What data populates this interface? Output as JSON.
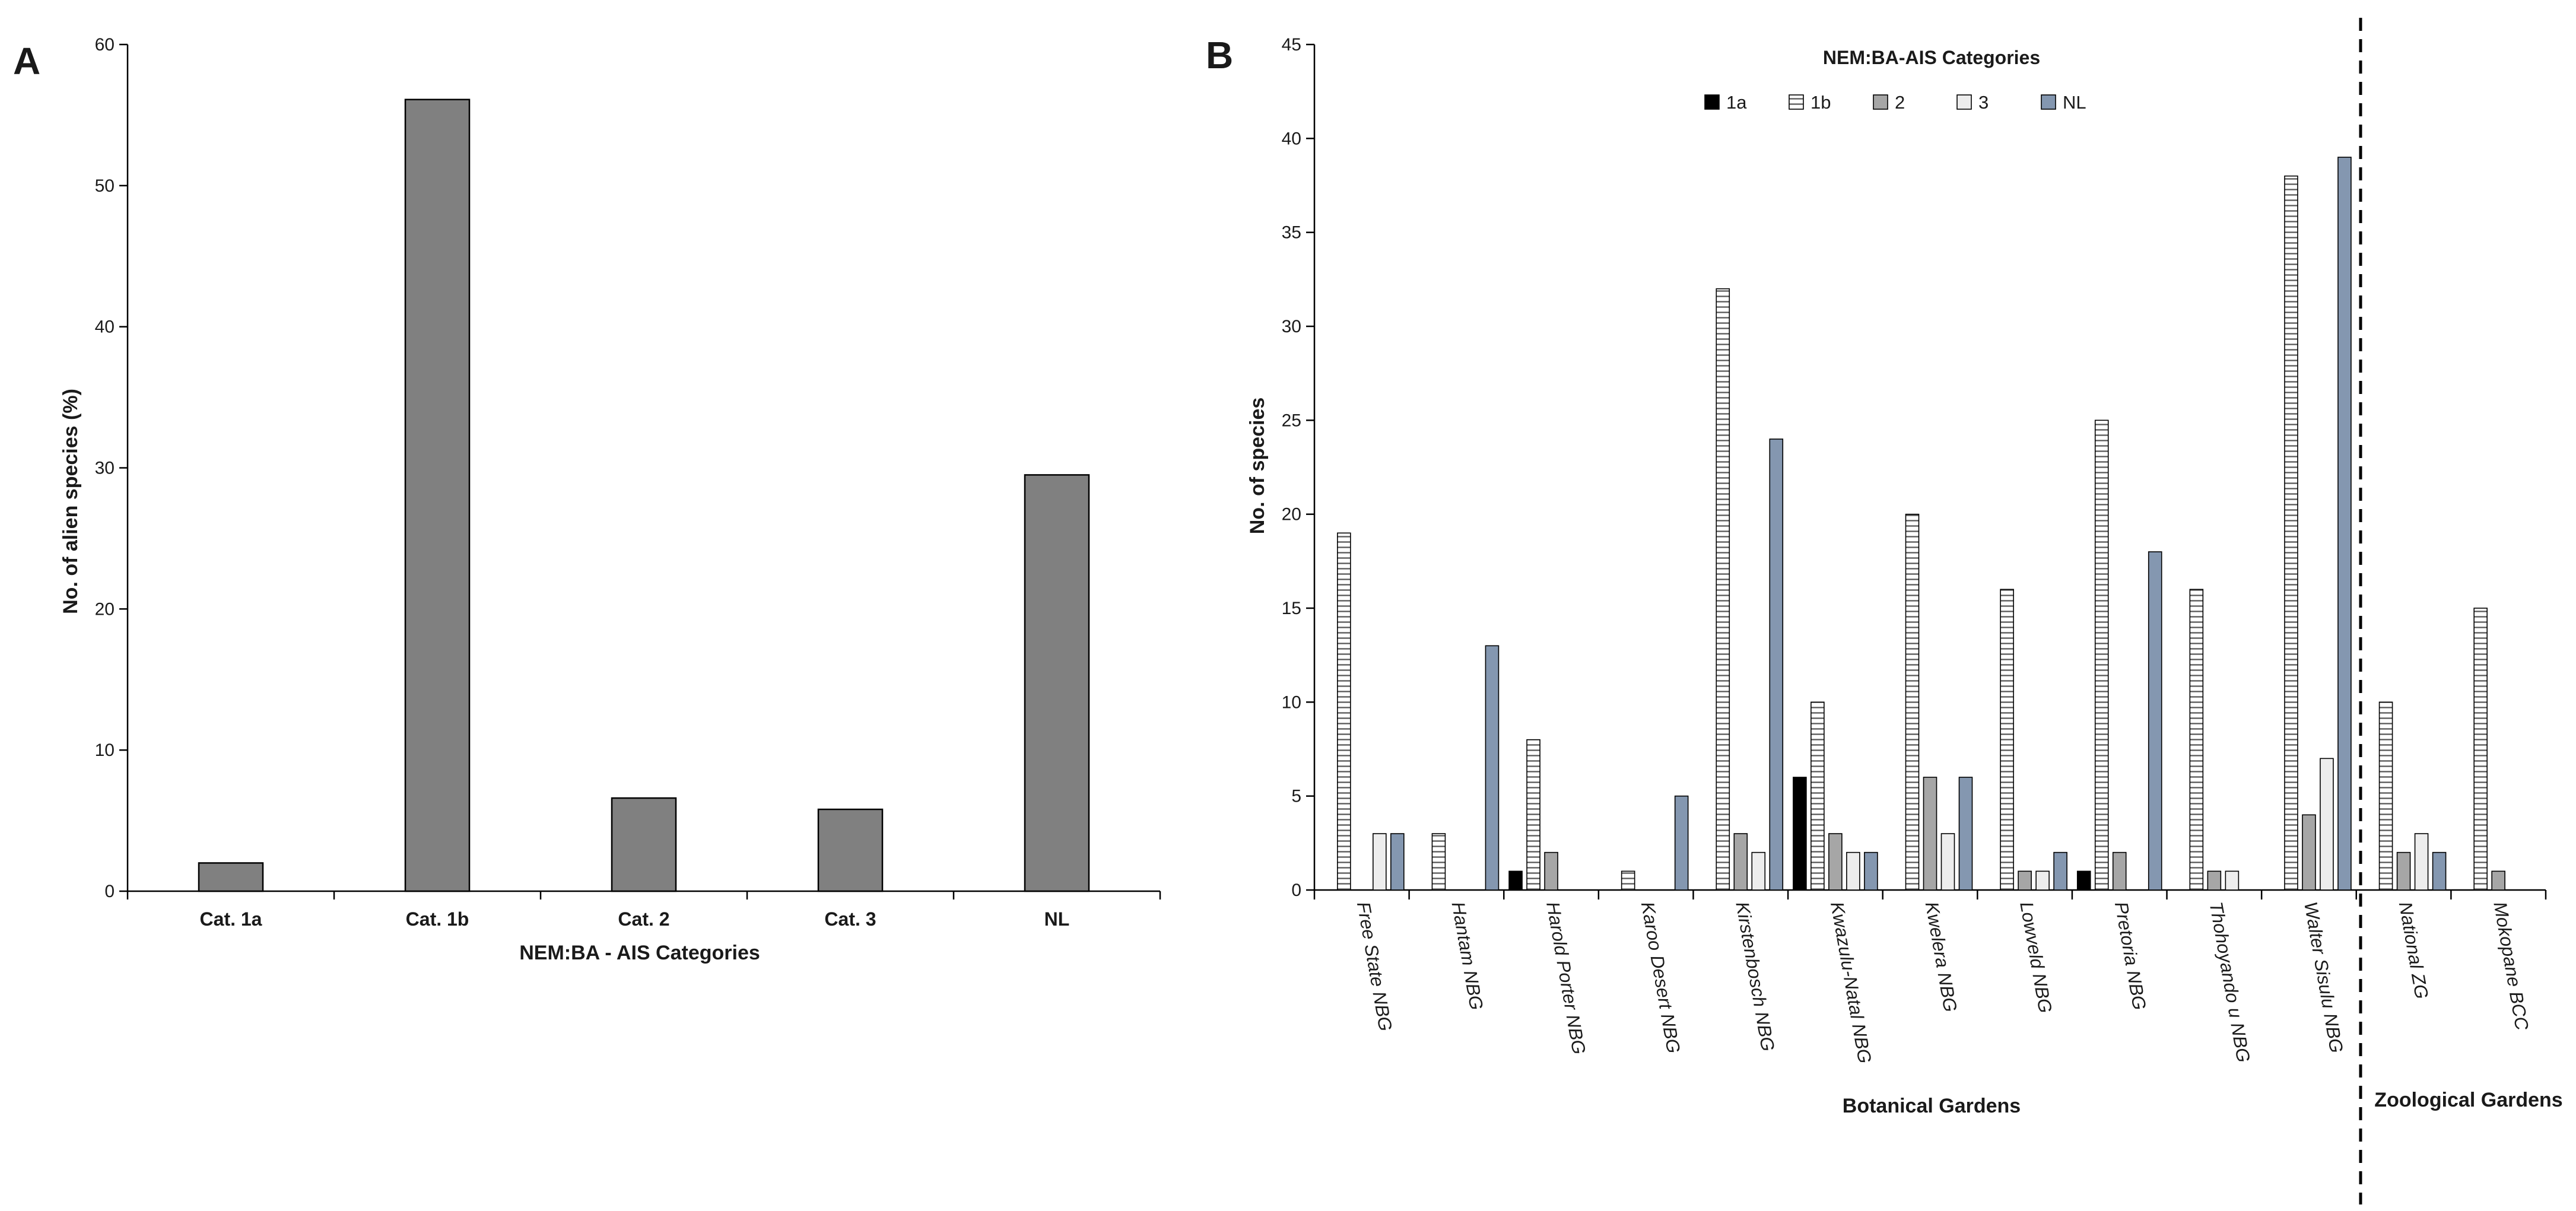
{
  "chart_data": [
    {
      "type": "bar",
      "panel_label": "A",
      "categories": [
        "Cat. 1a",
        "Cat. 1b",
        "Cat. 2",
        "Cat. 3",
        "NL"
      ],
      "values": [
        2.0,
        56.1,
        6.6,
        5.8,
        29.5
      ],
      "xlabel": "NEM:BA - AIS Categories",
      "ylabel": "No. of alien species (%)",
      "ylim": [
        0,
        60
      ],
      "yticks": [
        0,
        10,
        20,
        30,
        40,
        50,
        60
      ],
      "bar_color": "#808080"
    },
    {
      "type": "bar",
      "panel_label": "B",
      "categories": [
        "Free State NBG",
        "Hantam NBG",
        "Harold Porter NBG",
        "Karoo Desert NBG",
        "Kirstenbosch NBG",
        "Kwazulu-Natal NBG",
        "Kwelera NBG",
        "Lowveld NBG",
        "Pretoria NBG",
        "Thohoyando u NBG",
        "Walter Sisulu NBG",
        "National ZG",
        "Mokopane BCC"
      ],
      "series": [
        {
          "name": "1a",
          "values": [
            0,
            0,
            1,
            0,
            0,
            6,
            0,
            0,
            1,
            0,
            0,
            0,
            0
          ]
        },
        {
          "name": "1b",
          "values": [
            19,
            3,
            8,
            1,
            32,
            10,
            20,
            16,
            25,
            16,
            38,
            10,
            15
          ]
        },
        {
          "name": "2",
          "values": [
            0,
            0,
            2,
            0,
            3,
            3,
            6,
            1,
            2,
            1,
            4,
            2,
            1
          ]
        },
        {
          "name": "3",
          "values": [
            3,
            0,
            0,
            0,
            2,
            2,
            3,
            1,
            0,
            1,
            7,
            3,
            0
          ]
        },
        {
          "name": "NL",
          "values": [
            3,
            13,
            0,
            5,
            24,
            2,
            6,
            2,
            18,
            0,
            39,
            2,
            0
          ]
        }
      ],
      "legend_title": "NEM:BA-AIS Categories",
      "legend_position": "top-center",
      "ylabel": "No. of species",
      "ylim": [
        0,
        45
      ],
      "yticks": [
        0,
        5,
        10,
        15,
        20,
        25,
        30,
        35,
        40,
        45
      ],
      "group_labels": [
        "Botanical Gardens",
        "Zoological Gardens"
      ],
      "colors": {
        "1a": "#000000",
        "1b": "#ffffff",
        "2": "#a6a6a6",
        "3": "#ededed",
        "NL": "#8497b0"
      }
    }
  ]
}
